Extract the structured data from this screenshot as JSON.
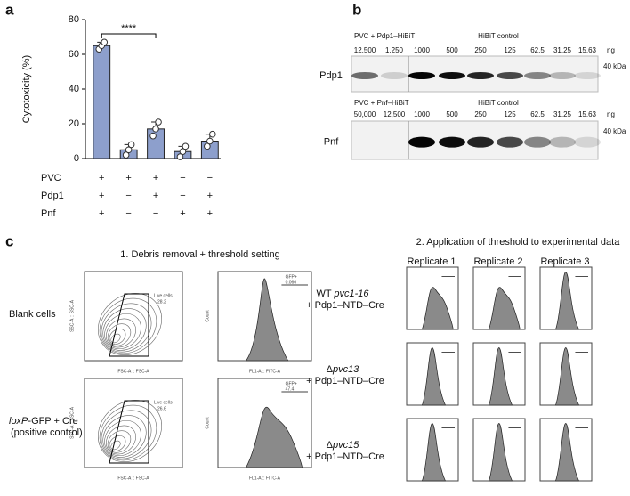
{
  "panel_labels": {
    "a": "a",
    "b": "b",
    "c": "c"
  },
  "chart_data": {
    "type": "bar",
    "ylabel": "Cytotoxicity (%)",
    "values": [
      65,
      5,
      17,
      4,
      10
    ],
    "errors": [
      2,
      3,
      4,
      3,
      4
    ],
    "points": [
      [
        63,
        65,
        67
      ],
      [
        2,
        5,
        8
      ],
      [
        13,
        17,
        21
      ],
      [
        1,
        4,
        7
      ],
      [
        7,
        10,
        14
      ]
    ],
    "color": "#8d9fcc",
    "ylim": [
      0,
      80
    ],
    "yticks": [
      0,
      20,
      40,
      60,
      80
    ],
    "significance": "****",
    "conditions": [
      {
        "name": "PVC",
        "marks": [
          "+",
          "+",
          "+",
          "−",
          "−"
        ]
      },
      {
        "name": "Pdp1",
        "marks": [
          "+",
          "−",
          "+",
          "−",
          "+"
        ]
      },
      {
        "name": "Pnf",
        "marks": [
          "+",
          "−",
          "−",
          "+",
          "+"
        ]
      }
    ]
  },
  "blots": [
    {
      "sample": "PVC + Pdp1–HiBiT",
      "control": "HiBiT control",
      "lanes": [
        "12,500",
        "1,250",
        "1000",
        "500",
        "250",
        "125",
        "62.5",
        "31.25",
        "15.63"
      ],
      "unit": "ng",
      "protein": "Pdp1",
      "marker": "40 kDa"
    },
    {
      "sample": "PVC + Pnf–HiBiT",
      "control": "HiBiT control",
      "lanes": [
        "50,000",
        "12,500",
        "1000",
        "500",
        "250",
        "125",
        "62.5",
        "31.25",
        "15.63"
      ],
      "unit": "ng",
      "protein": "Pnf",
      "marker": "40 kDa"
    }
  ],
  "flow": {
    "title_1": "1. Debris removal + threshold setting",
    "title_2": "2. Application of threshold to experimental data",
    "rows": [
      {
        "label": [
          "Blank cells"
        ],
        "gate": "Live cells",
        "gate_value": "28.2",
        "gfp": "GFP+",
        "gfp_value": "0.060"
      },
      {
        "label": [
          "loxP",
          "-GFP + Cre",
          "(positive control)"
        ],
        "gate": "Live cells",
        "gate_value": "26.6",
        "gfp": "GFP+",
        "gfp_value": "47.4"
      }
    ],
    "scatter_x": "FSC-A :: FSC-A",
    "scatter_y": "SSC-A :: SSC-A",
    "hist_x": "FL1-A :: FITC-A",
    "hist_y": "Count",
    "replicates": [
      "Replicate 1",
      "Replicate 2",
      "Replicate 3"
    ],
    "strains": [
      [
        "WT ",
        "pvc1-16",
        "+ Pdp1–NTD–Cre"
      ],
      [
        "Δ",
        "pvc13",
        "+ Pdp1–NTD–Cre"
      ],
      [
        "Δ",
        "pvc15",
        "+ Pdp1–NTD–Cre"
      ]
    ]
  }
}
